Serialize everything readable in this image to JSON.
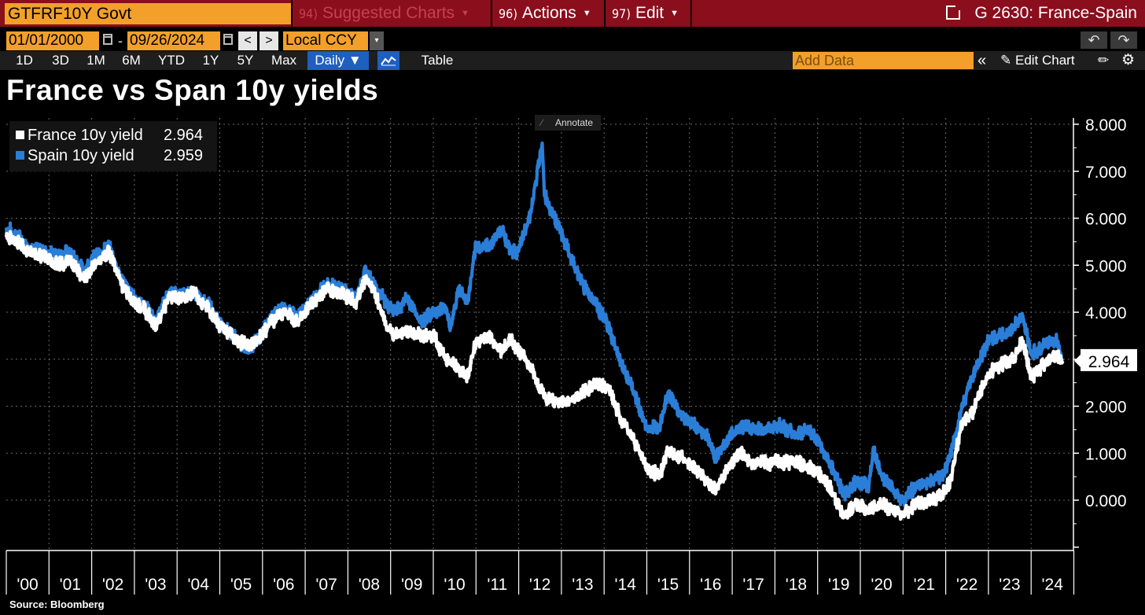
{
  "command_bar": {
    "security": "GTFRF10Y Govt",
    "suggested": {
      "num": "94)",
      "label": "Suggested Charts"
    },
    "actions": {
      "num": "96)",
      "label": "Actions"
    },
    "edit": {
      "num": "97)",
      "label": "Edit"
    },
    "function_title": "G 2630: France-Spain",
    "accent": "#8b0e1d"
  },
  "date_row": {
    "start_date": "01/01/2000",
    "dash": "-",
    "end_date": "09/26/2024",
    "prev": "<",
    "next": ">",
    "currency": "Local CCY",
    "dropdown": "▾",
    "undo": "↶",
    "redo": "↷"
  },
  "range_row": {
    "ranges": [
      "1D",
      "3D",
      "1M",
      "6M",
      "YTD",
      "1Y",
      "5Y",
      "Max"
    ],
    "frequency": "Daily ▼",
    "table_label": "Table",
    "add_data_placeholder": "Add Data",
    "collapse": "«",
    "edit_chart": "Edit Chart"
  },
  "annotate_label": "Annotate",
  "source": "Source: Bloomberg",
  "chart_data": {
    "type": "line",
    "title": "France vs Span 10y yields",
    "xlabel": "",
    "ylabel": "",
    "ylim": [
      -1.0,
      8.0
    ],
    "yticks": [
      0,
      1,
      2,
      3,
      4,
      5,
      6,
      7,
      8
    ],
    "ytick_labels": [
      "0.000",
      "1.000",
      "2.000",
      "3.000",
      "4.000",
      "5.000",
      "6.000",
      "7.000",
      "8.000"
    ],
    "xlim": [
      2000.0,
      2024.85
    ],
    "xticks": [
      "'00",
      "'01",
      "'02",
      "'03",
      "'04",
      "'05",
      "'06",
      "'07",
      "'08",
      "'09",
      "'10",
      "'11",
      "'12",
      "'13",
      "'14",
      "'15",
      "'16",
      "'17",
      "'18",
      "'19",
      "'20",
      "'21",
      "'22",
      "'23",
      "'24"
    ],
    "grid": true,
    "legend_position": "top-left",
    "last_value_label": "2.964",
    "series": [
      {
        "name": "France 10y yield",
        "last": "2.964",
        "color": "#ffffff",
        "x": [
          2000.0,
          2000.3,
          2000.5,
          2000.9,
          2001.2,
          2001.5,
          2001.8,
          2002.1,
          2002.4,
          2002.7,
          2003.0,
          2003.2,
          2003.5,
          2003.8,
          2004.1,
          2004.4,
          2004.7,
          2005.0,
          2005.3,
          2005.6,
          2005.9,
          2006.2,
          2006.5,
          2006.8,
          2007.1,
          2007.5,
          2007.8,
          2008.2,
          2008.4,
          2008.6,
          2008.9,
          2009.1,
          2009.4,
          2009.7,
          2010.0,
          2010.3,
          2010.6,
          2010.8,
          2011.0,
          2011.3,
          2011.6,
          2011.8,
          2012.0,
          2012.3,
          2012.6,
          2012.9,
          2013.2,
          2013.5,
          2013.8,
          2014.1,
          2014.4,
          2014.7,
          2015.0,
          2015.3,
          2015.5,
          2015.8,
          2016.1,
          2016.4,
          2016.6,
          2016.9,
          2017.2,
          2017.5,
          2017.8,
          2018.1,
          2018.5,
          2018.8,
          2019.1,
          2019.4,
          2019.6,
          2019.9,
          2020.2,
          2020.5,
          2020.8,
          2021.0,
          2021.3,
          2021.6,
          2021.9,
          2022.1,
          2022.4,
          2022.6,
          2022.8,
          2023.0,
          2023.3,
          2023.6,
          2023.8,
          2024.0,
          2024.3,
          2024.6,
          2024.74
        ],
        "values": [
          5.6,
          5.5,
          5.3,
          5.2,
          5.0,
          5.1,
          4.7,
          5.0,
          5.3,
          4.6,
          4.2,
          4.1,
          3.7,
          4.3,
          4.3,
          4.4,
          4.1,
          3.7,
          3.5,
          3.3,
          3.4,
          3.8,
          4.0,
          3.8,
          4.1,
          4.5,
          4.4,
          4.2,
          4.7,
          4.5,
          3.7,
          3.5,
          3.6,
          3.5,
          3.5,
          3.0,
          2.8,
          2.6,
          3.4,
          3.5,
          3.2,
          3.4,
          3.2,
          2.8,
          2.2,
          2.1,
          2.1,
          2.3,
          2.5,
          2.4,
          1.7,
          1.3,
          0.7,
          0.5,
          1.1,
          0.9,
          0.7,
          0.4,
          0.2,
          0.7,
          1.0,
          0.8,
          0.8,
          0.8,
          0.8,
          0.7,
          0.5,
          0.1,
          -0.3,
          -0.1,
          -0.2,
          -0.1,
          -0.2,
          -0.3,
          -0.1,
          0.0,
          0.1,
          0.4,
          1.7,
          1.8,
          2.3,
          2.7,
          2.9,
          3.0,
          3.4,
          2.6,
          2.9,
          3.1,
          2.96
        ]
      },
      {
        "name": "Spain 10y yield",
        "last": "2.959",
        "color": "#2a7ed8",
        "x": [
          2000.0,
          2000.3,
          2000.5,
          2000.9,
          2001.2,
          2001.5,
          2001.8,
          2002.1,
          2002.4,
          2002.7,
          2003.0,
          2003.2,
          2003.5,
          2003.8,
          2004.1,
          2004.4,
          2004.7,
          2005.0,
          2005.3,
          2005.6,
          2005.9,
          2006.2,
          2006.5,
          2006.8,
          2007.1,
          2007.5,
          2007.8,
          2008.2,
          2008.4,
          2008.6,
          2008.9,
          2009.1,
          2009.4,
          2009.7,
          2010.0,
          2010.3,
          2010.4,
          2010.6,
          2010.8,
          2011.0,
          2011.3,
          2011.6,
          2011.8,
          2012.0,
          2012.3,
          2012.55,
          2012.6,
          2012.9,
          2013.2,
          2013.5,
          2013.8,
          2014.1,
          2014.4,
          2014.7,
          2015.0,
          2015.3,
          2015.5,
          2015.8,
          2016.1,
          2016.4,
          2016.6,
          2016.9,
          2017.2,
          2017.5,
          2017.8,
          2018.1,
          2018.5,
          2018.8,
          2019.1,
          2019.4,
          2019.6,
          2019.9,
          2020.2,
          2020.3,
          2020.5,
          2020.8,
          2021.0,
          2021.3,
          2021.6,
          2021.9,
          2022.1,
          2022.4,
          2022.6,
          2022.8,
          2023.0,
          2023.3,
          2023.6,
          2023.8,
          2024.0,
          2024.3,
          2024.6,
          2024.74
        ],
        "values": [
          5.8,
          5.6,
          5.4,
          5.3,
          5.2,
          5.3,
          4.9,
          5.2,
          5.4,
          4.7,
          4.3,
          4.2,
          3.8,
          4.4,
          4.4,
          4.4,
          4.2,
          3.8,
          3.5,
          3.2,
          3.4,
          3.9,
          4.1,
          3.9,
          4.2,
          4.6,
          4.5,
          4.3,
          4.9,
          4.6,
          4.2,
          4.0,
          4.3,
          3.8,
          4.0,
          4.1,
          3.7,
          4.5,
          4.2,
          5.4,
          5.4,
          5.8,
          5.3,
          5.3,
          6.2,
          7.6,
          6.5,
          5.9,
          5.2,
          4.6,
          4.2,
          3.7,
          2.9,
          2.3,
          1.5,
          1.6,
          2.3,
          1.8,
          1.6,
          1.4,
          0.9,
          1.3,
          1.6,
          1.5,
          1.5,
          1.6,
          1.4,
          1.5,
          1.1,
          0.6,
          0.1,
          0.4,
          0.3,
          1.1,
          0.5,
          0.2,
          0.0,
          0.3,
          0.4,
          0.5,
          0.9,
          2.0,
          2.6,
          3.0,
          3.4,
          3.5,
          3.7,
          3.9,
          3.1,
          3.3,
          3.4,
          2.96
        ]
      }
    ]
  }
}
